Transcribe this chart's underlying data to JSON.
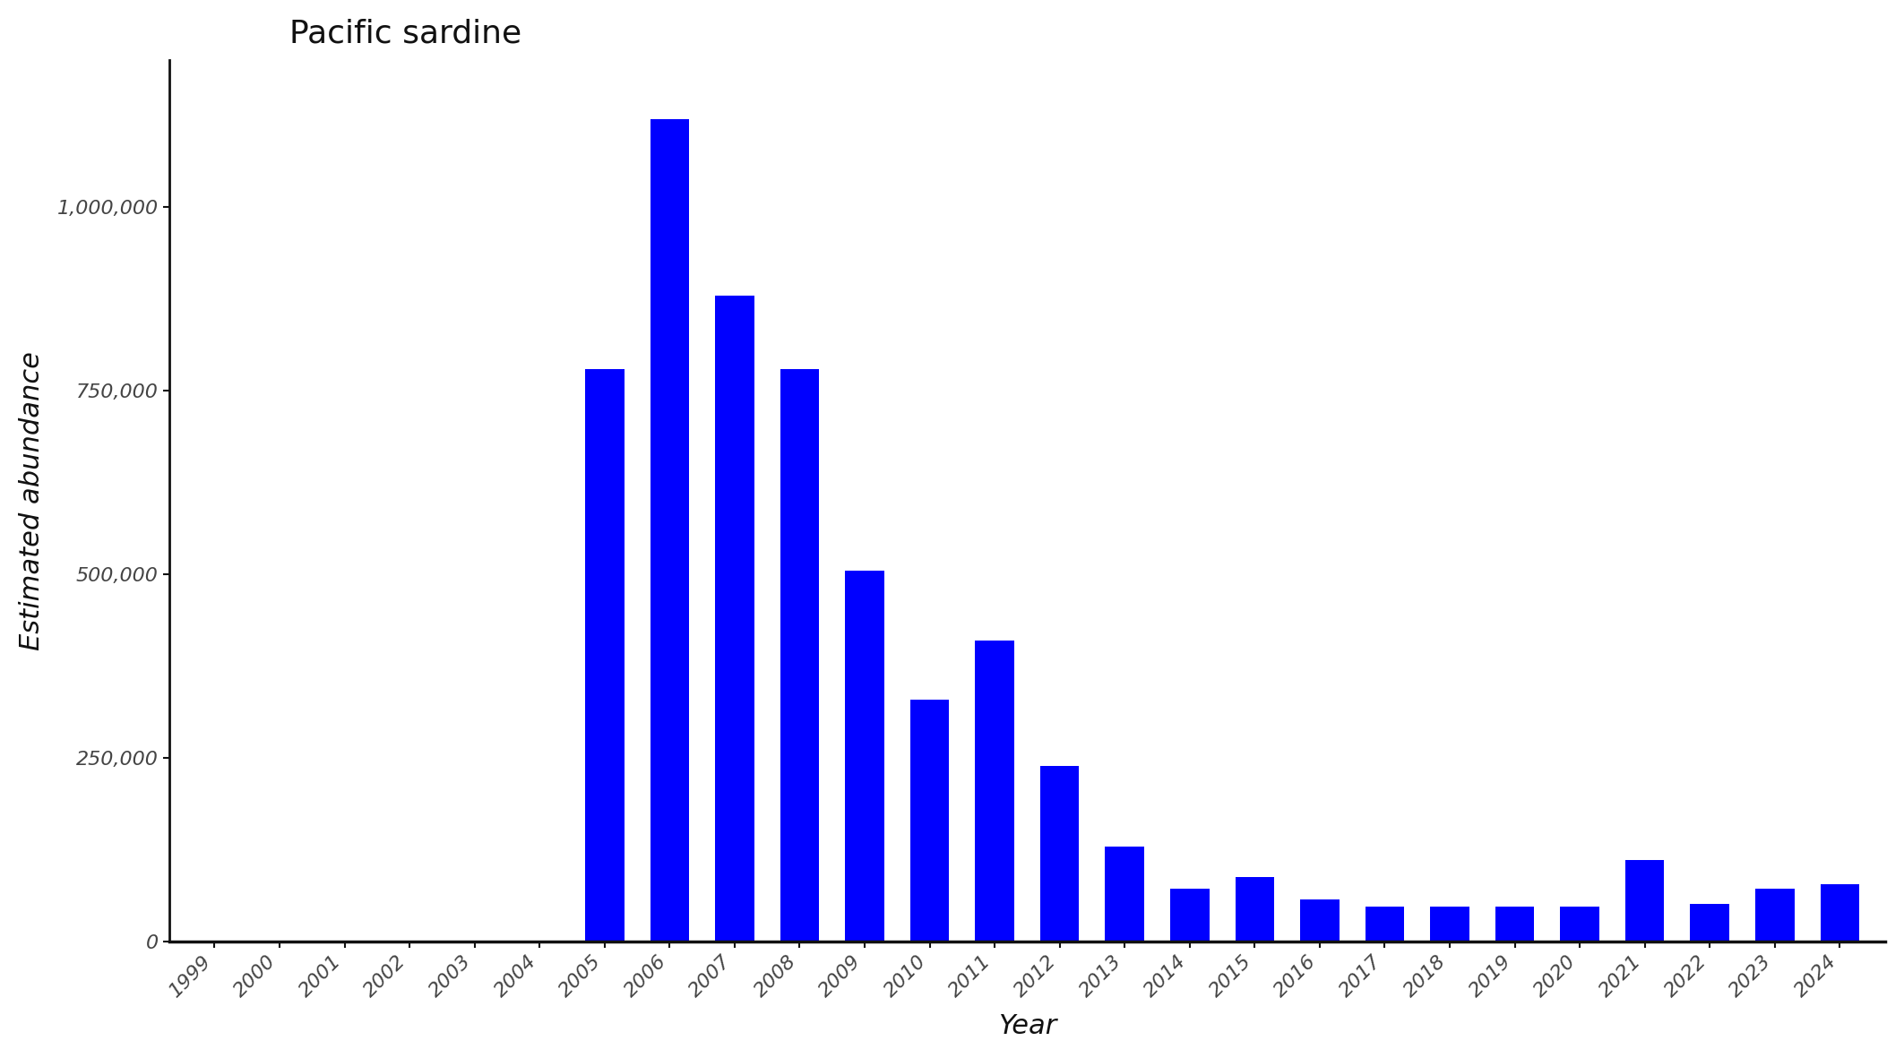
{
  "title": "Pacific sardine",
  "xlabel": "Year",
  "ylabel": "Estimated abundance",
  "bar_color": "#0000FF",
  "background_color": "#FFFFFF",
  "years": [
    1999,
    2000,
    2001,
    2002,
    2003,
    2004,
    2005,
    2006,
    2007,
    2008,
    2009,
    2010,
    2011,
    2012,
    2013,
    2014,
    2015,
    2016,
    2017,
    2018,
    2019,
    2020,
    2021,
    2022,
    2023,
    2024
  ],
  "values": [
    0,
    0,
    0,
    0,
    0,
    0,
    780000,
    1120000,
    880000,
    780000,
    505000,
    330000,
    410000,
    240000,
    130000,
    72000,
    88000,
    58000,
    48000,
    48000,
    48000,
    48000,
    112000,
    52000,
    72000,
    78000
  ],
  "ylim": [
    0,
    1200000
  ],
  "yticks": [
    0,
    250000,
    500000,
    750000,
    1000000
  ],
  "ytick_labels": [
    "0",
    "250,000",
    "500,000",
    "750,000",
    "1,000,000"
  ],
  "title_fontsize": 26,
  "axis_label_fontsize": 22,
  "tick_fontsize": 16,
  "bar_width": 0.6
}
